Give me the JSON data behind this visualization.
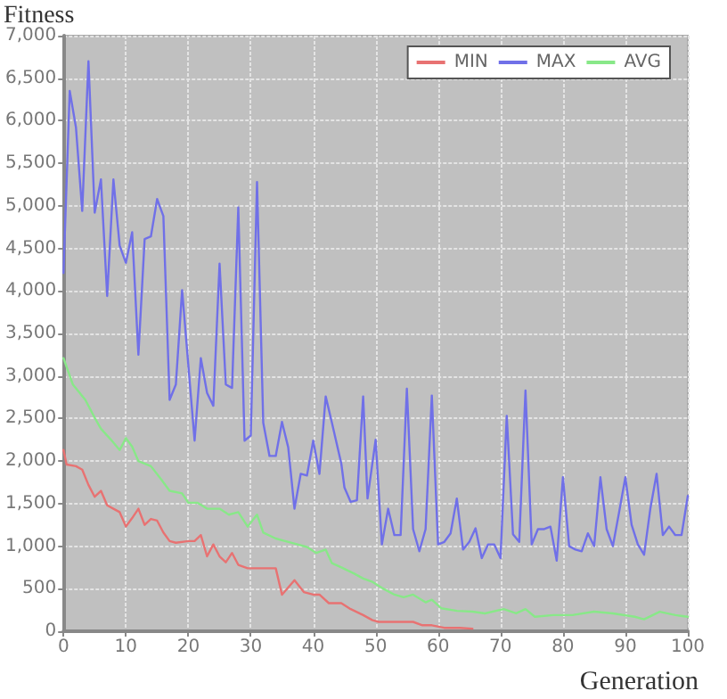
{
  "chart_data": {
    "type": "line",
    "ylabel": "Fitness",
    "xlabel": "Generation",
    "xlim": [
      0,
      100
    ],
    "xticks": [
      0,
      10,
      20,
      30,
      40,
      50,
      60,
      70,
      80,
      90,
      100
    ],
    "ylim": [
      0,
      7000
    ],
    "yticks": [
      {
        "value": 0,
        "label": "0"
      },
      {
        "value": 500,
        "label": "500"
      },
      {
        "value": 1000,
        "label": "1,000"
      },
      {
        "value": 1500,
        "label": "1,500"
      },
      {
        "value": 2000,
        "label": "2,000"
      },
      {
        "value": 2500,
        "label": "2,500"
      },
      {
        "value": 3000,
        "label": "3,000"
      },
      {
        "value": 3500,
        "label": "3,500"
      },
      {
        "value": 4000,
        "label": "4,000"
      },
      {
        "value": 4500,
        "label": "4,500"
      },
      {
        "value": 5000,
        "label": "5,000"
      },
      {
        "value": 5500,
        "label": "5,500"
      },
      {
        "value": 6000,
        "label": "6,000"
      },
      {
        "value": 6500,
        "label": "6,500"
      },
      {
        "value": 7000,
        "label": "7,000"
      }
    ],
    "grid": true,
    "legend": "top right",
    "marker": "none",
    "line_style": "solid",
    "series": [
      {
        "name": "MIN",
        "color": "#e87272",
        "x": [
          0,
          0.5,
          2,
          3,
          4,
          5,
          6,
          7,
          8,
          9,
          10,
          11,
          12,
          13,
          14,
          15,
          16,
          17,
          18,
          20,
          21,
          22,
          23,
          24,
          25,
          26,
          27,
          28,
          29.5,
          32.5,
          34,
          35,
          37,
          38.5,
          40,
          41,
          42.5,
          44.5,
          46,
          48,
          49.5,
          50.5,
          56,
          57.5,
          59,
          61,
          63.5,
          65.5
        ],
        "values": [
          2130,
          1960,
          1940,
          1900,
          1720,
          1580,
          1650,
          1480,
          1440,
          1400,
          1230,
          1330,
          1440,
          1250,
          1320,
          1300,
          1160,
          1060,
          1040,
          1060,
          1060,
          1130,
          880,
          1020,
          880,
          810,
          920,
          780,
          740,
          740,
          740,
          430,
          600,
          460,
          430,
          430,
          330,
          330,
          260,
          190,
          130,
          110,
          110,
          70,
          70,
          40,
          40,
          30
        ]
      },
      {
        "name": "MAX",
        "color": "#7070e8",
        "x": [
          0,
          1,
          2,
          3,
          4,
          5,
          6,
          7,
          8,
          9,
          10,
          11,
          12,
          13,
          14,
          15,
          16,
          17,
          18,
          19,
          21,
          22,
          23,
          24,
          25,
          26,
          27,
          28,
          29,
          30,
          31,
          32,
          33,
          34,
          35,
          36,
          37,
          38,
          39,
          40,
          41,
          42,
          43,
          44.5,
          45,
          46,
          47,
          48,
          48.7,
          50,
          51,
          52,
          53,
          54,
          55,
          56,
          57,
          58,
          59,
          60,
          61,
          62,
          63,
          64,
          65,
          66,
          67,
          68,
          69,
          70,
          71,
          72,
          73,
          74,
          75,
          76,
          77,
          78,
          79,
          80,
          81,
          82,
          83,
          84,
          85,
          86,
          87,
          88,
          89,
          90,
          91,
          92,
          93,
          94,
          95,
          96,
          97,
          98,
          99,
          100
        ],
        "values": [
          4210,
          6350,
          5920,
          4940,
          6700,
          4920,
          5310,
          3940,
          5310,
          4530,
          4330,
          4690,
          3250,
          4610,
          4640,
          5080,
          4880,
          2720,
          2900,
          4010,
          2240,
          3210,
          2800,
          2650,
          4320,
          2900,
          2860,
          4980,
          2240,
          2300,
          5280,
          2450,
          2060,
          2060,
          2460,
          2160,
          1440,
          1850,
          1830,
          2240,
          1850,
          2760,
          2450,
          1970,
          1690,
          1520,
          1540,
          2760,
          1560,
          2250,
          1020,
          1440,
          1130,
          1130,
          2850,
          1200,
          940,
          1200,
          2770,
          1020,
          1050,
          1150,
          1560,
          960,
          1050,
          1210,
          860,
          1020,
          1020,
          860,
          2530,
          1140,
          1050,
          2830,
          1020,
          1200,
          1200,
          1230,
          830,
          1810,
          1000,
          960,
          940,
          1150,
          1000,
          1810,
          1200,
          1000,
          1400,
          1810,
          1250,
          1020,
          900,
          1440,
          1850,
          1130,
          1230,
          1130,
          1130,
          1590
        ]
      },
      {
        "name": "AVG",
        "color": "#88e888",
        "x": [
          0,
          1.5,
          3.5,
          5,
          6,
          7.5,
          9,
          10,
          11,
          12,
          14,
          15.5,
          17,
          19,
          20,
          21.5,
          23,
          25,
          26.5,
          28,
          29.5,
          31,
          32,
          34,
          35.5,
          37.5,
          39,
          40.5,
          42,
          43,
          44.5,
          46.5,
          48,
          49.5,
          51,
          53,
          54.5,
          56,
          58,
          59,
          60.5,
          63,
          65.5,
          67.5,
          70.5,
          72.5,
          74,
          75.5,
          78.5,
          81.5,
          85,
          88,
          91.5,
          93,
          95.5,
          98,
          100
        ],
        "values": [
          3210,
          2900,
          2720,
          2510,
          2380,
          2260,
          2130,
          2270,
          2170,
          2000,
          1940,
          1800,
          1650,
          1620,
          1510,
          1510,
          1440,
          1440,
          1370,
          1400,
          1230,
          1370,
          1160,
          1090,
          1060,
          1020,
          990,
          920,
          960,
          800,
          750,
          680,
          620,
          580,
          510,
          430,
          400,
          430,
          340,
          370,
          270,
          240,
          230,
          210,
          260,
          210,
          260,
          170,
          190,
          190,
          230,
          210,
          170,
          140,
          230,
          190,
          170
        ]
      }
    ]
  }
}
